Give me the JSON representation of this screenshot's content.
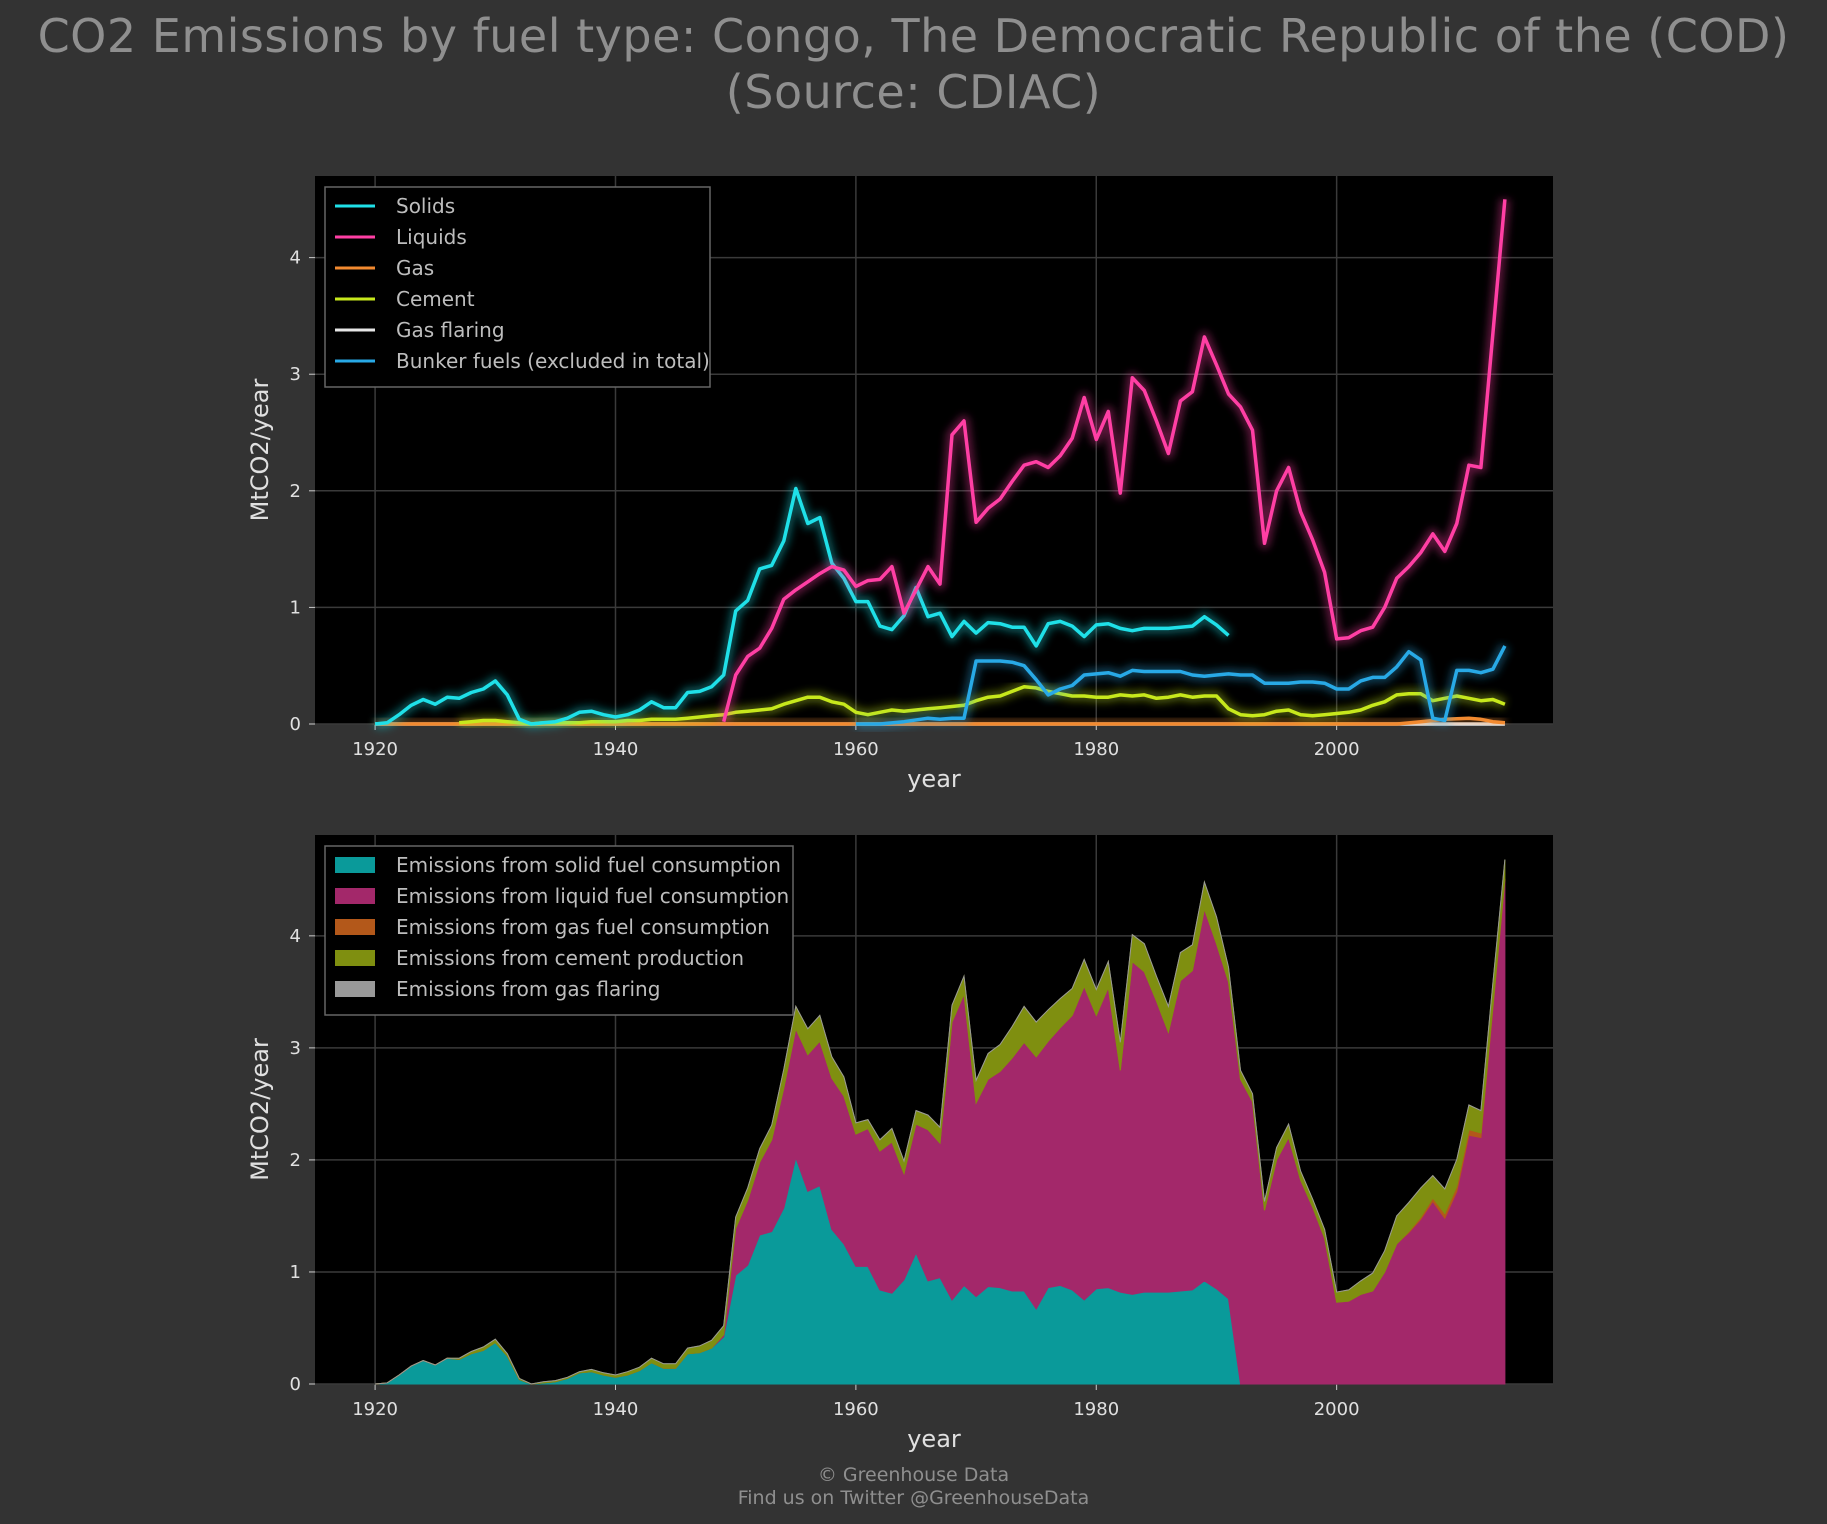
{
  "title": {
    "line1": "CO2 Emissions by fuel type: Congo, The Democratic Republic of the (COD)",
    "line2": "(Source: CDIAC)"
  },
  "footer": {
    "line1": "© Greenhouse Data",
    "line2": "Find us on Twitter @GreenhouseData"
  },
  "chart_data": [
    {
      "type": "line",
      "xlabel": "year",
      "ylabel": "MtCO2/year",
      "xlim": [
        1915,
        2018
      ],
      "ylim": [
        0,
        4.7
      ],
      "xticks": [
        1920,
        1940,
        1960,
        1980,
        2000
      ],
      "yticks": [
        0,
        1,
        2,
        3,
        4
      ],
      "grid": true,
      "legend_position": "top-left",
      "background": "#000000",
      "series": [
        {
          "name": "Solids",
          "color": "#1fe0e8",
          "x": [
            1920,
            1921,
            1922,
            1923,
            1924,
            1925,
            1926,
            1927,
            1928,
            1929,
            1930,
            1931,
            1932,
            1933,
            1934,
            1935,
            1936,
            1937,
            1938,
            1939,
            1940,
            1941,
            1942,
            1943,
            1944,
            1945,
            1946,
            1947,
            1948,
            1949,
            1950,
            1951,
            1952,
            1953,
            1954,
            1955,
            1956,
            1957,
            1958,
            1959,
            1960,
            1961,
            1962,
            1963,
            1964,
            1965,
            1966,
            1967,
            1968,
            1969,
            1970,
            1971,
            1972,
            1973,
            1974,
            1975,
            1976,
            1977,
            1978,
            1979,
            1980,
            1981,
            1982,
            1983,
            1984,
            1985,
            1986,
            1987,
            1988,
            1989,
            1990,
            1991
          ],
          "values": [
            0.0,
            0.01,
            0.08,
            0.16,
            0.21,
            0.17,
            0.23,
            0.22,
            0.27,
            0.3,
            0.37,
            0.25,
            0.04,
            0.0,
            0.01,
            0.02,
            0.05,
            0.1,
            0.11,
            0.08,
            0.06,
            0.08,
            0.12,
            0.19,
            0.14,
            0.14,
            0.27,
            0.28,
            0.32,
            0.42,
            0.97,
            1.06,
            1.33,
            1.36,
            1.57,
            2.02,
            1.72,
            1.77,
            1.38,
            1.25,
            1.05,
            1.05,
            0.84,
            0.81,
            0.93,
            1.17,
            0.92,
            0.95,
            0.75,
            0.88,
            0.78,
            0.87,
            0.86,
            0.83,
            0.83,
            0.67,
            0.86,
            0.88,
            0.84,
            0.75,
            0.85,
            0.86,
            0.82,
            0.8,
            0.82,
            0.82,
            0.82,
            0.83,
            0.84,
            0.92,
            0.85,
            0.76
          ]
        },
        {
          "name": "Liquids",
          "color": "#ff3fa4",
          "x": [
            1949,
            1950,
            1951,
            1952,
            1953,
            1954,
            1955,
            1956,
            1957,
            1958,
            1959,
            1960,
            1961,
            1962,
            1963,
            1964,
            1965,
            1966,
            1967,
            1968,
            1969,
            1970,
            1971,
            1972,
            1973,
            1974,
            1975,
            1976,
            1977,
            1978,
            1979,
            1980,
            1981,
            1982,
            1983,
            1984,
            1985,
            1986,
            1987,
            1988,
            1989,
            1990,
            1991,
            1992,
            1993,
            1994,
            1995,
            1996,
            1997,
            1998,
            1999,
            2000,
            2001,
            2002,
            2003,
            2004,
            2005,
            2006,
            2007,
            2008,
            2009,
            2010,
            2011,
            2012,
            2013,
            2014
          ],
          "values": [
            0.02,
            0.42,
            0.58,
            0.65,
            0.82,
            1.07,
            1.15,
            1.22,
            1.29,
            1.35,
            1.32,
            1.18,
            1.23,
            1.24,
            1.35,
            0.95,
            1.15,
            1.35,
            1.2,
            2.48,
            2.6,
            1.73,
            1.85,
            1.93,
            2.08,
            2.22,
            2.25,
            2.2,
            2.3,
            2.45,
            2.8,
            2.44,
            2.68,
            1.98,
            2.97,
            2.86,
            2.6,
            2.32,
            2.77,
            2.85,
            3.32,
            3.08,
            2.83,
            2.72,
            2.52,
            1.55,
            2.0,
            2.2,
            1.82,
            1.58,
            1.3,
            0.73,
            0.74,
            0.8,
            0.83,
            1.0,
            1.25,
            1.35,
            1.47,
            1.63,
            1.48,
            1.72,
            2.22,
            2.2,
            3.35,
            4.5
          ]
        },
        {
          "name": "Gas",
          "color": "#f28a30",
          "x": [
            1920,
            1925,
            1930,
            1935,
            1940,
            1945,
            1950,
            1955,
            1960,
            1965,
            1970,
            1975,
            1980,
            1985,
            1990,
            1995,
            2000,
            2003,
            2005,
            2007,
            2009,
            2011,
            2012,
            2013,
            2014
          ],
          "values": [
            0.0,
            0.0,
            0.0,
            0.0,
            0.0,
            0.0,
            0.0,
            0.0,
            0.0,
            0.0,
            0.0,
            0.0,
            0.0,
            0.0,
            0.0,
            0.0,
            0.0,
            0.0,
            0.0,
            0.02,
            0.04,
            0.05,
            0.04,
            0.02,
            0.01
          ]
        },
        {
          "name": "Cement",
          "color": "#c7e81c",
          "x": [
            1927,
            1928,
            1929,
            1930,
            1931,
            1932,
            1933,
            1934,
            1935,
            1936,
            1937,
            1938,
            1939,
            1940,
            1941,
            1942,
            1943,
            1944,
            1945,
            1946,
            1947,
            1948,
            1949,
            1950,
            1951,
            1952,
            1953,
            1954,
            1955,
            1956,
            1957,
            1958,
            1959,
            1960,
            1961,
            1962,
            1963,
            1964,
            1965,
            1966,
            1967,
            1968,
            1969,
            1970,
            1971,
            1972,
            1973,
            1974,
            1975,
            1976,
            1977,
            1978,
            1979,
            1980,
            1981,
            1982,
            1983,
            1984,
            1985,
            1986,
            1987,
            1988,
            1989,
            1990,
            1991,
            1992,
            1993,
            1994,
            1995,
            1996,
            1997,
            1998,
            1999,
            2000,
            2001,
            2002,
            2003,
            2004,
            2005,
            2006,
            2007,
            2008,
            2009,
            2010,
            2011,
            2012,
            2013,
            2014
          ],
          "values": [
            0.01,
            0.02,
            0.03,
            0.03,
            0.02,
            0.01,
            0.0,
            0.01,
            0.01,
            0.01,
            0.01,
            0.02,
            0.02,
            0.02,
            0.03,
            0.03,
            0.04,
            0.04,
            0.04,
            0.05,
            0.06,
            0.07,
            0.08,
            0.1,
            0.11,
            0.12,
            0.13,
            0.17,
            0.2,
            0.23,
            0.23,
            0.19,
            0.17,
            0.1,
            0.08,
            0.1,
            0.12,
            0.11,
            0.12,
            0.13,
            0.14,
            0.15,
            0.16,
            0.2,
            0.23,
            0.24,
            0.28,
            0.32,
            0.31,
            0.28,
            0.26,
            0.24,
            0.24,
            0.23,
            0.23,
            0.25,
            0.24,
            0.25,
            0.22,
            0.23,
            0.25,
            0.23,
            0.24,
            0.24,
            0.13,
            0.08,
            0.07,
            0.08,
            0.11,
            0.12,
            0.08,
            0.07,
            0.08,
            0.09,
            0.1,
            0.12,
            0.16,
            0.19,
            0.25,
            0.26,
            0.26,
            0.2,
            0.22,
            0.24,
            0.22,
            0.2,
            0.21,
            0.17
          ]
        },
        {
          "name": "Gas flaring",
          "color": "#e6e6e6",
          "x": [
            1920,
            1930,
            1940,
            1950,
            1960,
            1970,
            1980,
            1990,
            2000,
            2010,
            2014
          ],
          "values": [
            0,
            0,
            0,
            0,
            0,
            0,
            0,
            0,
            0,
            0,
            0
          ]
        },
        {
          "name": "Bunker fuels (excluded in total)",
          "color": "#28a9e6",
          "x": [
            1960,
            1962,
            1964,
            1966,
            1967,
            1968,
            1969,
            1970,
            1971,
            1972,
            1973,
            1974,
            1975,
            1976,
            1977,
            1978,
            1979,
            1980,
            1981,
            1982,
            1983,
            1984,
            1985,
            1986,
            1987,
            1988,
            1989,
            1990,
            1991,
            1992,
            1993,
            1994,
            1995,
            1996,
            1997,
            1998,
            1999,
            2000,
            2001,
            2002,
            2003,
            2004,
            2005,
            2006,
            2007,
            2008,
            2009,
            2010,
            2011,
            2012,
            2013,
            2014
          ],
          "values": [
            0.0,
            0.0,
            0.02,
            0.05,
            0.04,
            0.05,
            0.05,
            0.54,
            0.54,
            0.54,
            0.53,
            0.5,
            0.38,
            0.25,
            0.3,
            0.33,
            0.42,
            0.43,
            0.44,
            0.41,
            0.46,
            0.45,
            0.45,
            0.45,
            0.45,
            0.42,
            0.41,
            0.42,
            0.43,
            0.42,
            0.42,
            0.35,
            0.35,
            0.35,
            0.36,
            0.36,
            0.35,
            0.3,
            0.3,
            0.37,
            0.4,
            0.4,
            0.49,
            0.62,
            0.55,
            0.05,
            0.03,
            0.46,
            0.46,
            0.44,
            0.47,
            0.67
          ]
        }
      ]
    },
    {
      "type": "area",
      "stacked": true,
      "xlabel": "year",
      "ylabel": "MtCO2/year",
      "xlim": [
        1915,
        2018
      ],
      "ylim": [
        0,
        4.9
      ],
      "xticks": [
        1920,
        1940,
        1960,
        1980,
        2000
      ],
      "yticks": [
        0,
        1,
        2,
        3,
        4
      ],
      "grid": true,
      "legend_position": "top-left",
      "background": "#000000",
      "series_ref": "stack of Solids, Liquids, Gas, Cement, Gas flaring from chart 1",
      "series": [
        {
          "name": "Emissions from solid fuel consumption",
          "color": "#0a9a9a"
        },
        {
          "name": "Emissions from liquid fuel consumption",
          "color": "#a3286a"
        },
        {
          "name": "Emissions from gas fuel consumption",
          "color": "#b3581a"
        },
        {
          "name": "Emissions from cement production",
          "color": "#7f8f10"
        },
        {
          "name": "Emissions from gas flaring",
          "color": "#999999"
        }
      ]
    }
  ]
}
